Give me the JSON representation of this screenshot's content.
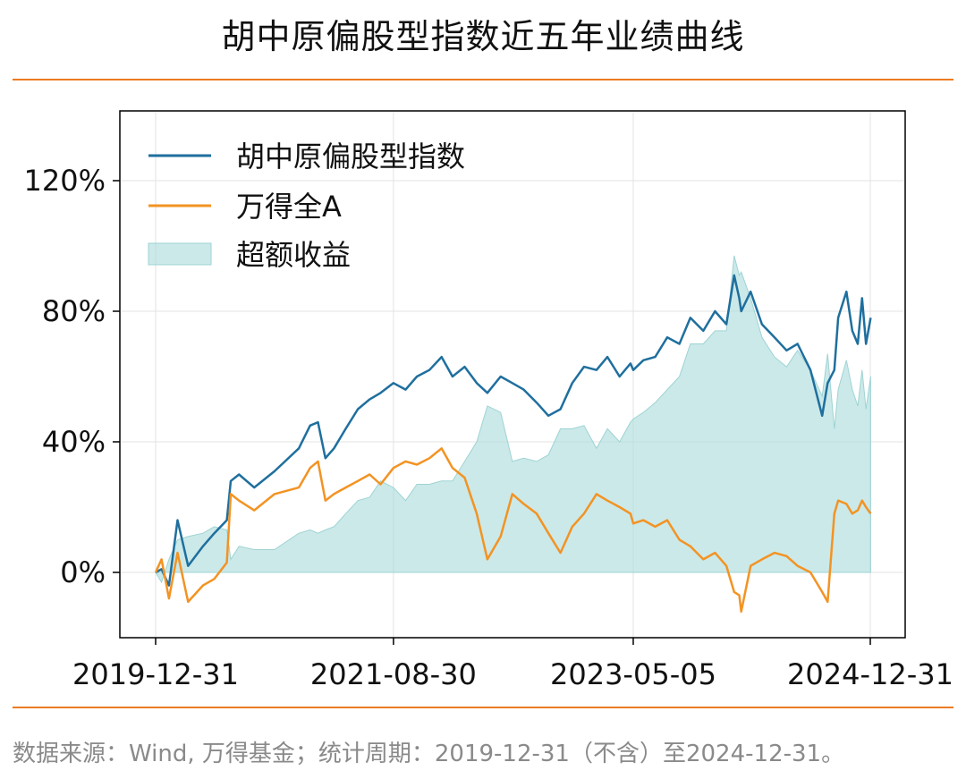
{
  "header": {
    "title": "胡中原偏股型指数近五年业绩曲线"
  },
  "footer": {
    "note": "数据来源：Wind, 万得基金；统计周期：2019-12-31（不含）至2024-12-31。"
  },
  "colors": {
    "index": "#1f6f9e",
    "market": "#f39323",
    "excess": "#a9dada",
    "rule": "#ec7c23"
  },
  "chart_data": {
    "type": "line",
    "title": "胡中原偏股型指数近五年业绩曲线",
    "xlabel": "",
    "ylabel": "",
    "x_ticks": [
      "2019-12-31",
      "2021-08-30",
      "2023-05-05",
      "2024-12-31"
    ],
    "y_ticks": [
      "0%",
      "40%",
      "80%",
      "120%"
    ],
    "y_tick_values": [
      0,
      40,
      80,
      120
    ],
    "xlim": [
      "2019-12-31",
      "2024-12-31"
    ],
    "ylim": [
      -20,
      135
    ],
    "grid": true,
    "legend_position": "top-left",
    "series": [
      {
        "name": "胡中原偏股型指数",
        "kind": "line",
        "points": [
          [
            "2019-12-31",
            0
          ],
          [
            "2020-01-15",
            1
          ],
          [
            "2020-02-03",
            -4
          ],
          [
            "2020-02-25",
            16
          ],
          [
            "2020-03-23",
            2
          ],
          [
            "2020-04-30",
            8
          ],
          [
            "2020-05-29",
            12
          ],
          [
            "2020-06-30",
            16
          ],
          [
            "2020-07-10",
            28
          ],
          [
            "2020-07-31",
            30
          ],
          [
            "2020-09-08",
            26
          ],
          [
            "2020-10-30",
            31
          ],
          [
            "2020-12-31",
            38
          ],
          [
            "2021-01-29",
            45
          ],
          [
            "2021-02-18",
            46
          ],
          [
            "2021-03-09",
            35
          ],
          [
            "2021-03-31",
            38
          ],
          [
            "2021-04-30",
            44
          ],
          [
            "2021-05-31",
            50
          ],
          [
            "2021-06-30",
            53
          ],
          [
            "2021-07-28",
            55
          ],
          [
            "2021-08-30",
            58
          ],
          [
            "2021-09-30",
            56
          ],
          [
            "2021-10-29",
            60
          ],
          [
            "2021-11-30",
            62
          ],
          [
            "2021-12-31",
            66
          ],
          [
            "2022-01-28",
            60
          ],
          [
            "2022-02-28",
            63
          ],
          [
            "2022-03-31",
            58
          ],
          [
            "2022-04-27",
            55
          ],
          [
            "2022-05-31",
            60
          ],
          [
            "2022-06-30",
            58
          ],
          [
            "2022-07-29",
            56
          ],
          [
            "2022-08-31",
            52
          ],
          [
            "2022-09-30",
            48
          ],
          [
            "2022-10-31",
            50
          ],
          [
            "2022-11-30",
            58
          ],
          [
            "2022-12-30",
            63
          ],
          [
            "2023-01-31",
            62
          ],
          [
            "2023-02-28",
            66
          ],
          [
            "2023-03-31",
            60
          ],
          [
            "2023-04-28",
            64
          ],
          [
            "2023-05-05",
            62
          ],
          [
            "2023-05-31",
            65
          ],
          [
            "2023-06-30",
            66
          ],
          [
            "2023-07-31",
            72
          ],
          [
            "2023-08-31",
            70
          ],
          [
            "2023-09-28",
            78
          ],
          [
            "2023-10-31",
            74
          ],
          [
            "2023-11-30",
            80
          ],
          [
            "2023-12-29",
            76
          ],
          [
            "2024-01-18",
            91
          ],
          [
            "2024-01-31",
            84
          ],
          [
            "2024-02-05",
            80
          ],
          [
            "2024-02-29",
            86
          ],
          [
            "2024-03-29",
            76
          ],
          [
            "2024-04-30",
            72
          ],
          [
            "2024-05-31",
            68
          ],
          [
            "2024-06-28",
            70
          ],
          [
            "2024-07-31",
            62
          ],
          [
            "2024-08-30",
            48
          ],
          [
            "2024-09-13",
            58
          ],
          [
            "2024-09-30",
            62
          ],
          [
            "2024-10-10",
            78
          ],
          [
            "2024-10-31",
            86
          ],
          [
            "2024-11-15",
            74
          ],
          [
            "2024-11-29",
            70
          ],
          [
            "2024-12-10",
            84
          ],
          [
            "2024-12-20",
            70
          ],
          [
            "2025-01-01",
            78
          ]
        ]
      },
      {
        "name": "万得全A",
        "kind": "line",
        "points": [
          [
            "2019-12-31",
            0
          ],
          [
            "2020-01-15",
            4
          ],
          [
            "2020-02-03",
            -8
          ],
          [
            "2020-02-25",
            6
          ],
          [
            "2020-03-23",
            -9
          ],
          [
            "2020-04-30",
            -4
          ],
          [
            "2020-05-29",
            -2
          ],
          [
            "2020-06-30",
            3
          ],
          [
            "2020-07-10",
            24
          ],
          [
            "2020-07-31",
            22
          ],
          [
            "2020-09-08",
            19
          ],
          [
            "2020-10-30",
            24
          ],
          [
            "2020-12-31",
            26
          ],
          [
            "2021-01-29",
            32
          ],
          [
            "2021-02-18",
            34
          ],
          [
            "2021-03-09",
            22
          ],
          [
            "2021-03-31",
            24
          ],
          [
            "2021-04-30",
            26
          ],
          [
            "2021-05-31",
            28
          ],
          [
            "2021-06-30",
            30
          ],
          [
            "2021-07-28",
            27
          ],
          [
            "2021-08-30",
            32
          ],
          [
            "2021-09-30",
            34
          ],
          [
            "2021-10-29",
            33
          ],
          [
            "2021-11-30",
            35
          ],
          [
            "2021-12-31",
            38
          ],
          [
            "2022-01-28",
            32
          ],
          [
            "2022-02-28",
            29
          ],
          [
            "2022-03-31",
            18
          ],
          [
            "2022-04-27",
            4
          ],
          [
            "2022-05-31",
            11
          ],
          [
            "2022-06-30",
            24
          ],
          [
            "2022-07-29",
            21
          ],
          [
            "2022-08-31",
            18
          ],
          [
            "2022-09-30",
            12
          ],
          [
            "2022-10-31",
            6
          ],
          [
            "2022-11-30",
            14
          ],
          [
            "2022-12-30",
            18
          ],
          [
            "2023-01-31",
            24
          ],
          [
            "2023-02-28",
            22
          ],
          [
            "2023-03-31",
            20
          ],
          [
            "2023-04-28",
            18
          ],
          [
            "2023-05-05",
            15
          ],
          [
            "2023-05-31",
            16
          ],
          [
            "2023-06-30",
            14
          ],
          [
            "2023-07-31",
            16
          ],
          [
            "2023-08-31",
            10
          ],
          [
            "2023-09-28",
            8
          ],
          [
            "2023-10-31",
            4
          ],
          [
            "2023-11-30",
            6
          ],
          [
            "2023-12-29",
            2
          ],
          [
            "2024-01-18",
            -6
          ],
          [
            "2024-01-31",
            -7
          ],
          [
            "2024-02-05",
            -12
          ],
          [
            "2024-02-29",
            2
          ],
          [
            "2024-03-29",
            4
          ],
          [
            "2024-04-30",
            6
          ],
          [
            "2024-05-31",
            5
          ],
          [
            "2024-06-28",
            2
          ],
          [
            "2024-07-31",
            0
          ],
          [
            "2024-08-30",
            -6
          ],
          [
            "2024-09-13",
            -9
          ],
          [
            "2024-09-30",
            18
          ],
          [
            "2024-10-10",
            22
          ],
          [
            "2024-10-31",
            21
          ],
          [
            "2024-11-15",
            18
          ],
          [
            "2024-11-29",
            19
          ],
          [
            "2024-12-10",
            22
          ],
          [
            "2024-12-20",
            20
          ],
          [
            "2025-01-01",
            18
          ]
        ]
      },
      {
        "name": "超额收益",
        "kind": "area",
        "points": [
          [
            "2019-12-31",
            0
          ],
          [
            "2020-01-15",
            -3
          ],
          [
            "2020-02-03",
            4
          ],
          [
            "2020-02-25",
            10
          ],
          [
            "2020-03-23",
            11
          ],
          [
            "2020-04-30",
            12
          ],
          [
            "2020-05-29",
            14
          ],
          [
            "2020-06-30",
            13
          ],
          [
            "2020-07-10",
            4
          ],
          [
            "2020-07-31",
            8
          ],
          [
            "2020-09-08",
            7
          ],
          [
            "2020-10-30",
            7
          ],
          [
            "2020-12-31",
            12
          ],
          [
            "2021-01-29",
            13
          ],
          [
            "2021-02-18",
            12
          ],
          [
            "2021-03-09",
            13
          ],
          [
            "2021-03-31",
            14
          ],
          [
            "2021-04-30",
            18
          ],
          [
            "2021-05-31",
            22
          ],
          [
            "2021-06-30",
            23
          ],
          [
            "2021-07-28",
            28
          ],
          [
            "2021-08-30",
            26
          ],
          [
            "2021-09-30",
            22
          ],
          [
            "2021-10-29",
            27
          ],
          [
            "2021-11-30",
            27
          ],
          [
            "2021-12-31",
            28
          ],
          [
            "2022-01-28",
            28
          ],
          [
            "2022-02-28",
            34
          ],
          [
            "2022-03-31",
            40
          ],
          [
            "2022-04-27",
            51
          ],
          [
            "2022-05-31",
            49
          ],
          [
            "2022-06-30",
            34
          ],
          [
            "2022-07-29",
            35
          ],
          [
            "2022-08-31",
            34
          ],
          [
            "2022-09-30",
            36
          ],
          [
            "2022-10-31",
            44
          ],
          [
            "2022-11-30",
            44
          ],
          [
            "2022-12-30",
            45
          ],
          [
            "2023-01-31",
            38
          ],
          [
            "2023-02-28",
            44
          ],
          [
            "2023-03-31",
            40
          ],
          [
            "2023-04-28",
            46
          ],
          [
            "2023-05-05",
            47
          ],
          [
            "2023-05-31",
            49
          ],
          [
            "2023-06-30",
            52
          ],
          [
            "2023-07-31",
            56
          ],
          [
            "2023-08-31",
            60
          ],
          [
            "2023-09-28",
            70
          ],
          [
            "2023-10-31",
            70
          ],
          [
            "2023-11-30",
            74
          ],
          [
            "2023-12-29",
            74
          ],
          [
            "2024-01-18",
            97
          ],
          [
            "2024-01-31",
            91
          ],
          [
            "2024-02-05",
            92
          ],
          [
            "2024-02-29",
            84
          ],
          [
            "2024-03-29",
            72
          ],
          [
            "2024-04-30",
            66
          ],
          [
            "2024-05-31",
            63
          ],
          [
            "2024-06-28",
            68
          ],
          [
            "2024-07-31",
            62
          ],
          [
            "2024-08-30",
            54
          ],
          [
            "2024-09-13",
            67
          ],
          [
            "2024-09-30",
            44
          ],
          [
            "2024-10-10",
            56
          ],
          [
            "2024-10-31",
            65
          ],
          [
            "2024-11-15",
            56
          ],
          [
            "2024-11-29",
            51
          ],
          [
            "2024-12-10",
            62
          ],
          [
            "2024-12-20",
            50
          ],
          [
            "2025-01-01",
            60
          ]
        ]
      }
    ]
  }
}
